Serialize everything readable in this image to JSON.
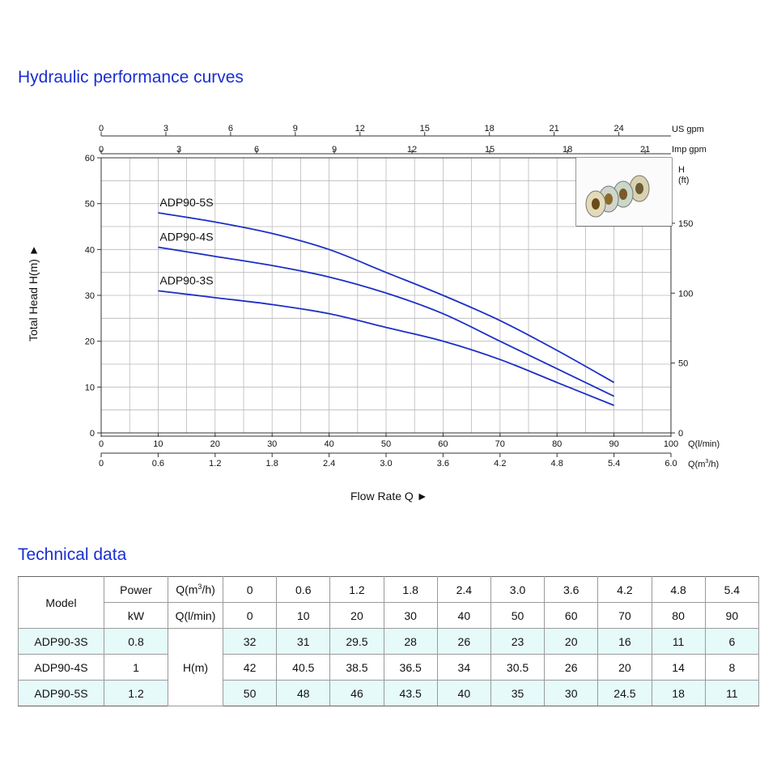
{
  "sections": {
    "chart_title": "Hydraulic performance curves",
    "table_title": "Technical data"
  },
  "chart_data": {
    "type": "line",
    "x_axis_label": "Flow Rate Q ►",
    "y_axis_label": "Total Head H(m) ►",
    "right_axis_label_1": "H",
    "right_axis_label_2": "(ft)",
    "x_units": {
      "lmin": "Q(l/min)",
      "m3h_pre": "Q(m",
      "m3h_sup": "3",
      "m3h_post": "/h)",
      "usgpm": "US gpm",
      "impgpm": "Imp gpm"
    },
    "xlim": [
      0,
      100
    ],
    "ylim": [
      0,
      60
    ],
    "grid": true,
    "x_ticks_lmin": [
      "0",
      "10",
      "20",
      "30",
      "40",
      "50",
      "60",
      "70",
      "80",
      "90",
      "100"
    ],
    "x_ticks_m3h": [
      "0",
      "0.6",
      "1.2",
      "1.8",
      "2.4",
      "3.0",
      "3.6",
      "4.2",
      "4.8",
      "5.4",
      "6.0"
    ],
    "top_ticks_usgpm": [
      "0",
      "3",
      "6",
      "9",
      "12",
      "15",
      "18",
      "21",
      "24"
    ],
    "top_ticks_impgpm": [
      "0",
      "3",
      "6",
      "9",
      "12",
      "15",
      "18",
      "21"
    ],
    "y_ticks": [
      "0",
      "10",
      "20",
      "30",
      "40",
      "50",
      "60"
    ],
    "right_ticks_ft": [
      "0",
      "50",
      "100",
      "150"
    ],
    "x": [
      10,
      20,
      30,
      40,
      50,
      60,
      70,
      80,
      90
    ],
    "series": [
      {
        "name": "ADP90-5S",
        "values": [
          48,
          46,
          43.5,
          40,
          35,
          30,
          24.5,
          18,
          11
        ]
      },
      {
        "name": "ADP90-4S",
        "values": [
          40.5,
          38.5,
          36.5,
          34,
          30.5,
          26,
          20,
          14,
          8
        ]
      },
      {
        "name": "ADP90-3S",
        "values": [
          31,
          29.5,
          28,
          26,
          23,
          20,
          16,
          11,
          6
        ]
      }
    ],
    "line_color": "#1c2fc7"
  },
  "table": {
    "model_header": "Model",
    "power_header": "Power",
    "power_unit": "kW",
    "q_m3h_pre": "Q(m",
    "q_m3h_sup": "3",
    "q_m3h_post": "/h)",
    "q_lmin_header": "Q(l/min)",
    "h_label": "H(m)",
    "q_m3h_values": [
      "0",
      "0.6",
      "1.2",
      "1.8",
      "2.4",
      "3.0",
      "3.6",
      "4.2",
      "4.8",
      "5.4"
    ],
    "q_lmin_values": [
      "0",
      "10",
      "20",
      "30",
      "40",
      "50",
      "60",
      "70",
      "80",
      "90"
    ],
    "rows": [
      {
        "model": "ADP90-3S",
        "power": "0.8",
        "heads": [
          "32",
          "31",
          "29.5",
          "28",
          "26",
          "23",
          "20",
          "16",
          "11",
          "6"
        ]
      },
      {
        "model": "ADP90-4S",
        "power": "1",
        "heads": [
          "42",
          "40.5",
          "38.5",
          "36.5",
          "34",
          "30.5",
          "26",
          "20",
          "14",
          "8"
        ]
      },
      {
        "model": "ADP90-5S",
        "power": "1.2",
        "heads": [
          "50",
          "48",
          "46",
          "43.5",
          "40",
          "35",
          "30",
          "24.5",
          "18",
          "11"
        ]
      }
    ]
  }
}
